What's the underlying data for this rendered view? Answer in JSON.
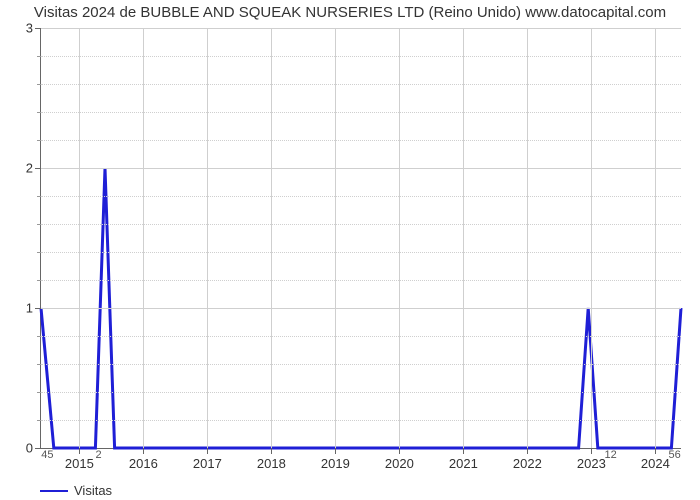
{
  "chart": {
    "type": "line",
    "title": "Visitas 2024 de BUBBLE AND SQUEAK NURSERIES LTD (Reino Unido) www.datocapital.com",
    "title_fontsize": 15,
    "title_color": "#333333",
    "background_color": "#ffffff",
    "line_color": "#1f1fd6",
    "line_width": 3,
    "grid_color": "#cfcfcf",
    "axis_color": "#666666",
    "label_fontsize": 13,
    "x_categories": [
      "2015",
      "2016",
      "2017",
      "2018",
      "2019",
      "2020",
      "2021",
      "2022",
      "2023",
      "2024"
    ],
    "x_values_below": [
      "45",
      "2",
      "",
      "",
      "",
      "",
      "",
      "",
      "12",
      "56"
    ],
    "ylim": [
      0,
      3
    ],
    "y_major_ticks": [
      0,
      1,
      2,
      3
    ],
    "y_minor_ticks": [
      0.2,
      0.4,
      0.6,
      0.8,
      1.2,
      1.4,
      1.6,
      1.8,
      2.2,
      2.4,
      2.6,
      2.8
    ],
    "x_offsets_pct": [
      6,
      16,
      26,
      36,
      46,
      56,
      66,
      76,
      86,
      96
    ],
    "xvalue_offsets_pct": [
      1,
      9,
      19,
      29,
      39,
      49,
      59,
      69,
      79,
      89,
      99
    ],
    "x_values_below_ext": [
      "45",
      "2",
      "",
      "",
      "",
      "",
      "",
      "",
      "",
      "12",
      "56"
    ],
    "data_points": [
      {
        "x": 0.0,
        "y": 1.0
      },
      {
        "x": 0.02,
        "y": 0.0
      },
      {
        "x": 0.085,
        "y": 0.0
      },
      {
        "x": 0.1,
        "y": 2.0
      },
      {
        "x": 0.115,
        "y": 0.0
      },
      {
        "x": 0.84,
        "y": 0.0
      },
      {
        "x": 0.855,
        "y": 1.0
      },
      {
        "x": 0.87,
        "y": 0.0
      },
      {
        "x": 0.985,
        "y": 0.0
      },
      {
        "x": 1.0,
        "y": 1.0
      }
    ],
    "legend_label": "Visitas"
  }
}
